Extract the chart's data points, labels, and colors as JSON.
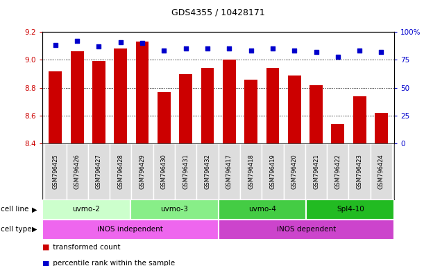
{
  "title": "GDS4355 / 10428171",
  "samples": [
    "GSM796425",
    "GSM796426",
    "GSM796427",
    "GSM796428",
    "GSM796429",
    "GSM796430",
    "GSM796431",
    "GSM796432",
    "GSM796417",
    "GSM796418",
    "GSM796419",
    "GSM796420",
    "GSM796421",
    "GSM796422",
    "GSM796423",
    "GSM796424"
  ],
  "transformed_count": [
    8.92,
    9.06,
    8.99,
    9.08,
    9.13,
    8.77,
    8.9,
    8.94,
    9.0,
    8.86,
    8.94,
    8.89,
    8.82,
    8.54,
    8.74,
    8.62
  ],
  "percentile_rank": [
    88,
    92,
    87,
    91,
    90,
    83,
    85,
    85,
    85,
    83,
    85,
    83,
    82,
    78,
    83,
    82
  ],
  "ylim_left": [
    8.4,
    9.2
  ],
  "ylim_right": [
    0,
    100
  ],
  "yticks_left": [
    8.4,
    8.6,
    8.8,
    9.0,
    9.2
  ],
  "yticks_right": [
    0,
    25,
    50,
    75,
    100
  ],
  "bar_color": "#cc0000",
  "dot_color": "#0000cc",
  "cell_lines": [
    {
      "label": "uvmo-2",
      "start": 0,
      "end": 4,
      "color": "#ccffcc"
    },
    {
      "label": "uvmo-3",
      "start": 4,
      "end": 8,
      "color": "#88ee88"
    },
    {
      "label": "uvmo-4",
      "start": 8,
      "end": 12,
      "color": "#44cc44"
    },
    {
      "label": "Spl4-10",
      "start": 12,
      "end": 16,
      "color": "#22bb22"
    }
  ],
  "cell_types": [
    {
      "label": "iNOS independent",
      "start": 0,
      "end": 8,
      "color": "#ee66ee"
    },
    {
      "label": "iNOS dependent",
      "start": 8,
      "end": 16,
      "color": "#cc44cc"
    }
  ],
  "axis_label_color_left": "#cc0000",
  "axis_label_color_right": "#0000cc"
}
